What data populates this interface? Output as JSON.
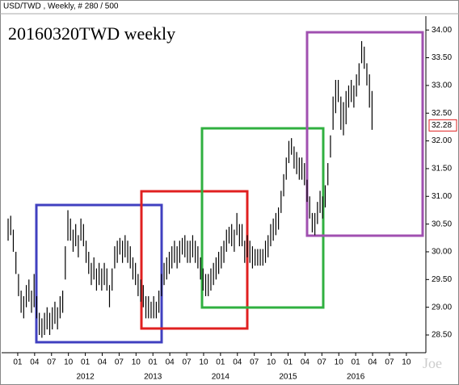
{
  "chart_data": {
    "type": "hilo",
    "header": "USD/TWD , Weekly, # 280 / 500",
    "title": "20160320TWD weekly",
    "watermark": "Joe",
    "color": "#000000",
    "high": [
      30.6,
      30.65,
      30.4,
      30.0,
      29.6,
      29.3,
      29.2,
      29.4,
      29.5,
      29.3,
      29.6,
      29.2,
      28.9,
      28.8,
      28.9,
      29.0,
      28.9,
      29.0,
      29.1,
      29.0,
      29.2,
      29.3,
      30.1,
      30.75,
      30.6,
      30.4,
      30.5,
      30.3,
      30.6,
      30.5,
      30.2,
      30.0,
      29.8,
      29.9,
      29.7,
      29.8,
      29.7,
      29.8,
      29.7,
      29.4,
      29.7,
      30.1,
      30.2,
      30.25,
      30.2,
      30.3,
      30.2,
      30.1,
      29.9,
      29.8,
      29.6,
      29.5,
      29.4,
      29.2,
      29.2,
      29.1,
      29.2,
      29.1,
      29.3,
      29.6,
      29.8,
      29.9,
      30.0,
      30.1,
      30.2,
      30.1,
      30.2,
      30.25,
      30.3,
      30.2,
      30.2,
      30.3,
      30.2,
      30.1,
      29.9,
      29.7,
      29.6,
      29.6,
      29.7,
      29.8,
      29.9,
      30.0,
      30.1,
      30.2,
      30.4,
      30.45,
      30.5,
      30.4,
      30.7,
      30.5,
      30.5,
      30.2,
      30.3,
      30.2,
      30.1,
      30.05,
      30.05,
      30.05,
      30.05,
      30.2,
      30.3,
      30.5,
      30.6,
      30.7,
      30.8,
      31.1,
      31.4,
      31.7,
      32.0,
      32.05,
      31.9,
      31.8,
      31.7,
      31.7,
      31.6,
      31.3,
      31.0,
      30.7,
      30.7,
      30.9,
      31.1,
      31.0,
      31.2,
      31.6,
      32.1,
      32.8,
      33.1,
      33.1,
      32.8,
      32.7,
      32.9,
      33.0,
      33.1,
      33.0,
      33.2,
      33.4,
      33.8,
      33.7,
      33.4,
      33.2,
      32.9
    ],
    "low": [
      30.2,
      30.3,
      30.0,
      29.6,
      29.2,
      28.9,
      28.8,
      29.0,
      29.1,
      28.9,
      29.0,
      28.8,
      28.5,
      28.45,
      28.5,
      28.6,
      28.5,
      28.6,
      28.7,
      28.6,
      28.8,
      28.9,
      29.5,
      30.2,
      30.2,
      30.0,
      30.1,
      29.9,
      30.2,
      30.1,
      29.8,
      29.6,
      29.4,
      29.5,
      29.3,
      29.4,
      29.3,
      29.4,
      29.3,
      29.0,
      29.3,
      29.7,
      29.8,
      29.95,
      29.8,
      29.9,
      29.8,
      29.7,
      29.5,
      29.4,
      29.2,
      29.1,
      29.0,
      28.8,
      28.8,
      28.8,
      28.8,
      28.8,
      28.9,
      29.2,
      29.4,
      29.5,
      29.6,
      29.7,
      29.8,
      29.7,
      29.8,
      29.95,
      29.9,
      29.8,
      29.8,
      29.9,
      29.8,
      29.7,
      29.5,
      29.3,
      29.2,
      29.2,
      29.3,
      29.4,
      29.5,
      29.6,
      29.7,
      29.8,
      30.0,
      30.15,
      30.1,
      30.0,
      30.3,
      30.1,
      30.1,
      29.8,
      29.9,
      29.8,
      29.7,
      29.75,
      29.75,
      29.75,
      29.75,
      29.8,
      29.9,
      30.1,
      30.2,
      30.3,
      30.4,
      30.7,
      31.0,
      31.3,
      31.6,
      31.75,
      31.5,
      31.4,
      31.3,
      31.3,
      31.2,
      30.9,
      30.6,
      30.35,
      30.3,
      30.5,
      30.7,
      30.6,
      30.8,
      31.2,
      31.7,
      32.2,
      32.5,
      32.7,
      32.2,
      32.1,
      32.3,
      32.6,
      32.7,
      32.6,
      32.8,
      33.0,
      33.4,
      33.3,
      33.0,
      32.6,
      32.2
    ],
    "last": 32.28,
    "ylim": [
      28.18,
      34.25
    ],
    "yticks": [
      {
        "value": 28.5,
        "label": "28.50"
      },
      {
        "value": 29,
        "label": "29.00"
      },
      {
        "value": 29.5,
        "label": "29.50"
      },
      {
        "value": 30,
        "label": "30.00"
      },
      {
        "value": 30.5,
        "label": "30.50"
      },
      {
        "value": 31,
        "label": "31.00"
      },
      {
        "value": 31.5,
        "label": "31.50"
      },
      {
        "value": 32,
        "label": "32.00"
      },
      {
        "value": 32.5,
        "label": "32.50"
      },
      {
        "value": 33,
        "label": "33.00"
      },
      {
        "value": 33.5,
        "label": "33.50"
      },
      {
        "value": 34,
        "label": "34.00"
      }
    ],
    "xlim": [
      -2.5,
      160.7
    ],
    "xticks": [
      {
        "value": 3.7,
        "label": "01"
      },
      {
        "value": 10.2,
        "label": "04"
      },
      {
        "value": 16.7,
        "label": "07"
      },
      {
        "value": 23.2,
        "label": "10"
      },
      {
        "value": 29.7,
        "label": "01"
      },
      {
        "value": 36.2,
        "label": "04"
      },
      {
        "value": 42.7,
        "label": "07"
      },
      {
        "value": 49.2,
        "label": "10"
      },
      {
        "value": 55.7,
        "label": "01"
      },
      {
        "value": 62.2,
        "label": "04"
      },
      {
        "value": 68.7,
        "label": "07"
      },
      {
        "value": 75.2,
        "label": "10"
      },
      {
        "value": 81.7,
        "label": "01"
      },
      {
        "value": 88.2,
        "label": "04"
      },
      {
        "value": 94.7,
        "label": "07"
      },
      {
        "value": 101.2,
        "label": "10"
      },
      {
        "value": 107.7,
        "label": "01"
      },
      {
        "value": 114.2,
        "label": "04"
      },
      {
        "value": 120.7,
        "label": "07"
      },
      {
        "value": 127.2,
        "label": "10"
      },
      {
        "value": 133.7,
        "label": "01"
      },
      {
        "value": 140.2,
        "label": "04"
      },
      {
        "value": 146.7,
        "label": "07"
      },
      {
        "value": 153.2,
        "label": "10"
      }
    ],
    "years": [
      {
        "value": 29.7,
        "label": "2012"
      },
      {
        "value": 55.7,
        "label": "2013"
      },
      {
        "value": 81.7,
        "label": "2014"
      },
      {
        "value": 107.7,
        "label": "2015"
      },
      {
        "value": 133.7,
        "label": "2016"
      }
    ]
  }
}
